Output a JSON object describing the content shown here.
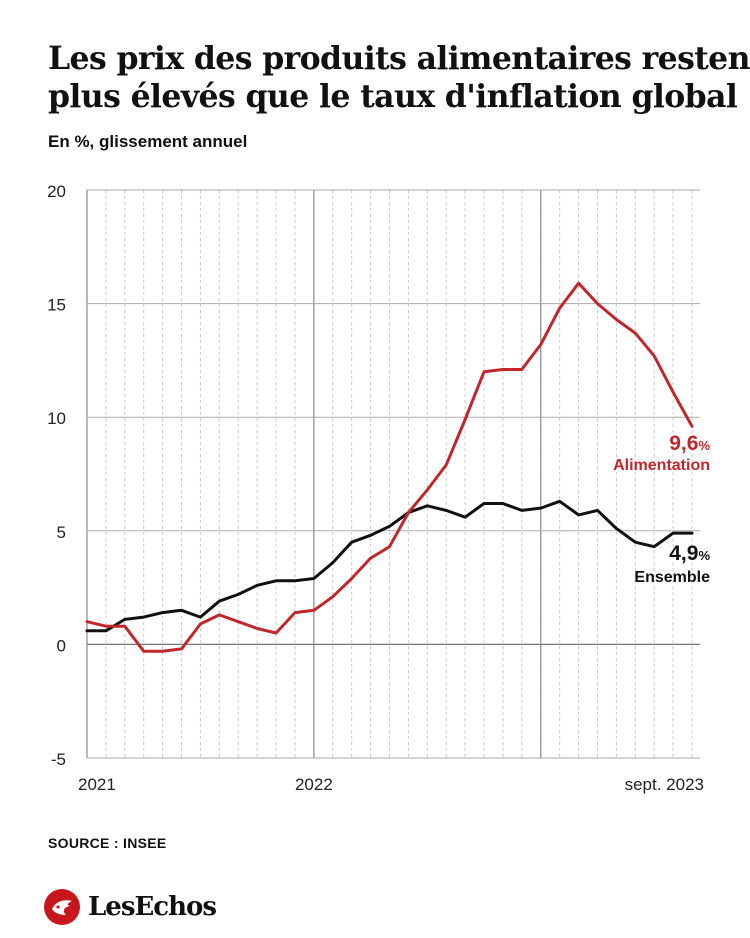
{
  "title_lines": [
    "Les prix des produits alimentaires restent",
    "plus élevés que le taux d'inflation global"
  ],
  "subtitle": "En %, glissement annuel",
  "source": "SOURCE : INSEE",
  "brand": "LesEchos",
  "colors": {
    "alimentation": "#c0272d",
    "ensemble": "#111111",
    "grid": "#c9c9c9",
    "major_grid": "#8a8a8a",
    "brand": "#c8161d"
  },
  "chart_data": {
    "type": "line",
    "x": [
      "2021-01",
      "2021-02",
      "2021-03",
      "2021-04",
      "2021-05",
      "2021-06",
      "2021-07",
      "2021-08",
      "2021-09",
      "2021-10",
      "2021-11",
      "2021-12",
      "2022-01",
      "2022-02",
      "2022-03",
      "2022-04",
      "2022-05",
      "2022-06",
      "2022-07",
      "2022-08",
      "2022-09",
      "2022-10",
      "2022-11",
      "2022-12",
      "2023-01",
      "2023-02",
      "2023-03",
      "2023-04",
      "2023-05",
      "2023-06",
      "2023-07",
      "2023-08",
      "2023-09"
    ],
    "series": [
      {
        "name": "Alimentation",
        "values": [
          1.0,
          0.8,
          0.8,
          -0.3,
          -0.3,
          -0.2,
          0.9,
          1.3,
          1.0,
          0.7,
          0.5,
          1.4,
          1.5,
          2.1,
          2.9,
          3.8,
          4.3,
          5.8,
          6.8,
          7.9,
          9.9,
          12.0,
          12.1,
          12.1,
          13.2,
          14.8,
          15.9,
          15.0,
          14.3,
          13.7,
          12.7,
          11.1,
          9.6
        ],
        "label_value": "9,6",
        "label_unit": "%"
      },
      {
        "name": "Ensemble",
        "values": [
          0.6,
          0.6,
          1.1,
          1.2,
          1.4,
          1.5,
          1.2,
          1.9,
          2.2,
          2.6,
          2.8,
          2.8,
          2.9,
          3.6,
          4.5,
          4.8,
          5.2,
          5.8,
          6.1,
          5.9,
          5.6,
          6.2,
          6.2,
          5.9,
          6.0,
          6.3,
          5.7,
          5.9,
          5.1,
          4.5,
          4.3,
          4.9,
          4.9
        ],
        "label_value": "4,9",
        "label_unit": "%"
      }
    ],
    "yticks": [
      "20",
      "15",
      "10",
      "5",
      "0",
      "-5"
    ],
    "ytick_values": [
      20,
      15,
      10,
      5,
      0,
      -5
    ],
    "xtick_labels": [
      "2021",
      "2022",
      "sept. 2023"
    ],
    "xtick_positions": [
      "2021-01",
      "2022-01",
      "2023-09"
    ],
    "xlabel": "",
    "ylabel": "",
    "ylim": [
      -5,
      20
    ],
    "grid": true,
    "major_vertical_lines": [
      "2022-01",
      "2023-01"
    ]
  }
}
